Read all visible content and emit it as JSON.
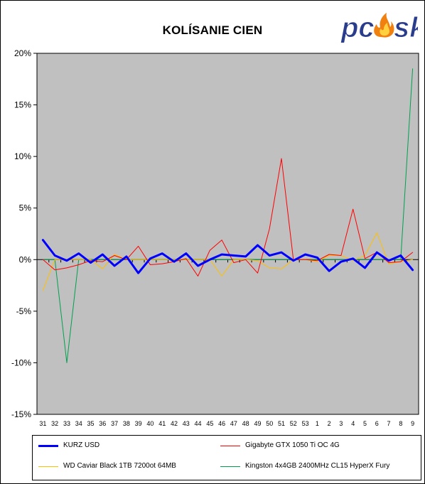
{
  "chart_data": {
    "type": "line",
    "title": "KOLÍSANIE CIEN",
    "categories": [
      "31",
      "32",
      "33",
      "34",
      "35",
      "36",
      "37",
      "38",
      "39",
      "40",
      "41",
      "42",
      "43",
      "44",
      "45",
      "46",
      "47",
      "48",
      "49",
      "50",
      "51",
      "52",
      "53",
      "1",
      "2",
      "3",
      "4",
      "5",
      "6",
      "7",
      "8",
      "9"
    ],
    "y_ticks": [
      "20%",
      "15%",
      "10%",
      "5%",
      "0%",
      "-5%",
      "-10%",
      "-15%"
    ],
    "ylim": [
      -15,
      20
    ],
    "grid": false,
    "legend_position": "bottom",
    "series": [
      {
        "name": "KURZ USD",
        "color": "#0000ff",
        "width": 3,
        "values": [
          1.9,
          0.4,
          -0.1,
          0.6,
          -0.3,
          0.5,
          -0.6,
          0.3,
          -1.3,
          0.1,
          0.6,
          -0.2,
          0.6,
          -0.6,
          0.0,
          0.5,
          0.4,
          0.3,
          1.4,
          0.4,
          0.7,
          -0.1,
          0.5,
          0.2,
          -1.1,
          -0.2,
          0.1,
          -0.8,
          0.7,
          -0.1,
          0.4,
          -1.0
        ]
      },
      {
        "name": "Gigabyte GTX 1050 Ti OC 4G",
        "color": "#ff0000",
        "width": 1,
        "values": [
          0.0,
          -1.0,
          -0.8,
          -0.5,
          -0.1,
          -0.2,
          0.4,
          0.0,
          1.3,
          -0.5,
          -0.4,
          -0.2,
          0.1,
          -1.6,
          0.9,
          1.9,
          -0.3,
          0.0,
          -1.3,
          3.0,
          9.8,
          0.0,
          0.0,
          -0.1,
          0.5,
          0.4,
          4.9,
          0.1,
          0.7,
          -0.3,
          -0.2,
          0.7
        ]
      },
      {
        "name": "WD Caviar Black 1TB 7200ot 64MB",
        "color": "#ffc000",
        "width": 1,
        "values": [
          -3.0,
          0.0,
          0.0,
          0.0,
          0.0,
          -0.9,
          0.5,
          0.0,
          0.0,
          0.0,
          0.0,
          0.0,
          0.0,
          0.0,
          0.0,
          -1.6,
          0.0,
          0.0,
          -0.1,
          -0.8,
          -0.9,
          0.0,
          0.0,
          -0.2,
          0.4,
          0.4,
          -0.1,
          0.4,
          2.6,
          -0.4,
          -0.2,
          0.0
        ]
      },
      {
        "name": "Kingston 4x4GB 2400MHz CL15 HyperX Fury",
        "color": "#00a050",
        "width": 1,
        "values": [
          0.0,
          0.0,
          -10.0,
          0.0,
          0.0,
          0.0,
          0.0,
          0.0,
          0.0,
          0.0,
          0.0,
          0.0,
          0.0,
          0.0,
          0.0,
          0.0,
          0.0,
          0.0,
          0.0,
          0.0,
          0.0,
          0.0,
          0.0,
          0.0,
          0.0,
          0.0,
          0.0,
          0.0,
          0.0,
          0.0,
          0.0,
          18.5
        ]
      }
    ]
  },
  "logo": {
    "text_left": "pc",
    "text_right": "sk",
    "colors": {
      "text": "#2a3c8c",
      "flame": "#f08010",
      "flame_inner": "#ffd040"
    }
  },
  "colors": {
    "plot_background": "#c0c0c0",
    "axis": "#000000"
  }
}
